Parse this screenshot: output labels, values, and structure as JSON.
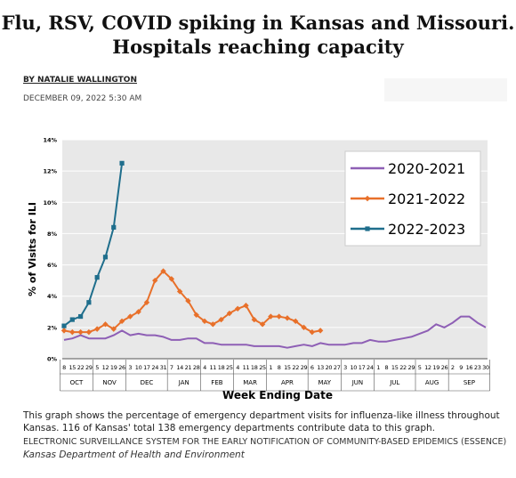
{
  "article": {
    "title_lines": [
      "Flu, RSV, COVID spiking in Kansas and Missouri.",
      "Hospitals reaching capacity"
    ],
    "byline": "BY NATALIE WALLINGTON",
    "date": "DECEMBER 09, 2022 5:30 AM",
    "caption": "This graph shows the percentage of emergency department visits for influenza-like illness throughout Kansas. 116 of Kansas' total 138 emergency departments contribute data to this graph.",
    "credit": "ELECTRONIC SURVEILLANCE SYSTEM FOR THE EARLY NOTIFICATION OF COMMUNITY-BASED EPIDEMICS (ESSENCE)",
    "credit_source": "Kansas Department of Health and Environment"
  },
  "chart_data": {
    "type": "line",
    "ylabel": "% of Visits for ILI",
    "xlabel": "Week Ending Date",
    "categories": [
      "8",
      "15",
      "22",
      "29",
      "5",
      "12",
      "19",
      "26",
      "3",
      "10",
      "17",
      "24",
      "31",
      "7",
      "14",
      "21",
      "28",
      "4",
      "11",
      "18",
      "25",
      "4",
      "11",
      "18",
      "25",
      "1",
      "8",
      "15",
      "22",
      "29",
      "6",
      "13",
      "20",
      "27",
      "3",
      "10",
      "17",
      "24",
      "1",
      "8",
      "15",
      "22",
      "29",
      "5",
      "12",
      "19",
      "26",
      "2",
      "9",
      "16",
      "23",
      "30"
    ],
    "months": [
      "OCT",
      "NOV",
      "DEC",
      "JAN",
      "FEB",
      "MAR",
      "APR",
      "MAY",
      "JUN",
      "JUL",
      "AUG",
      "SEP"
    ],
    "ylim": [
      0,
      14
    ],
    "yticks": [
      {
        "value": 0,
        "label": "0%"
      },
      {
        "value": 2,
        "label": "2%"
      },
      {
        "value": 4,
        "label": "4%"
      },
      {
        "value": 6,
        "label": "6%"
      },
      {
        "value": 8,
        "label": "8%"
      },
      {
        "value": 10,
        "label": "10%"
      },
      {
        "value": 12,
        "label": "12%"
      },
      {
        "value": 14,
        "label": "14%"
      }
    ],
    "grid": true,
    "legend": "upper right",
    "series": [
      {
        "name": "2020-2021",
        "color": "#8e5fb5",
        "marker": "none",
        "values": [
          1.2,
          1.3,
          1.5,
          1.3,
          1.3,
          1.3,
          1.5,
          1.8,
          1.5,
          1.6,
          1.5,
          1.5,
          1.4,
          1.2,
          1.2,
          1.3,
          1.3,
          1.0,
          1.0,
          0.9,
          0.9,
          0.9,
          0.9,
          0.8,
          0.8,
          0.8,
          0.8,
          0.7,
          0.8,
          0.9,
          0.8,
          1.0,
          0.9,
          0.9,
          0.9,
          1.0,
          1.0,
          1.2,
          1.1,
          1.1,
          1.2,
          1.3,
          1.4,
          1.6,
          1.8,
          2.2,
          2.0,
          2.3,
          2.7,
          2.7,
          2.3,
          2.0
        ]
      },
      {
        "name": "2021-2022",
        "color": "#e8702a",
        "marker": "diamond",
        "values": [
          1.8,
          1.7,
          1.7,
          1.7,
          1.9,
          2.2,
          1.9,
          2.4,
          2.7,
          3.0,
          3.6,
          5.0,
          5.6,
          5.1,
          4.3,
          3.7,
          2.8,
          2.4,
          2.2,
          2.5,
          2.9,
          3.2,
          3.4,
          2.5,
          2.2,
          2.7,
          2.7,
          2.6,
          2.4,
          2.0,
          1.7,
          1.8,
          null,
          null,
          null,
          null,
          null,
          null,
          null,
          null,
          null,
          null,
          null,
          null,
          null,
          null,
          null,
          null,
          null,
          null,
          null,
          null
        ]
      },
      {
        "name": "2022-2023",
        "color": "#1f6e8c",
        "marker": "square",
        "values": [
          2.1,
          2.5,
          2.7,
          3.6,
          5.2,
          6.5,
          8.4,
          12.5,
          null,
          null,
          null,
          null,
          null,
          null,
          null,
          null,
          null,
          null,
          null,
          null,
          null,
          null,
          null,
          null,
          null,
          null,
          null,
          null,
          null,
          null,
          null,
          null,
          null,
          null,
          null,
          null,
          null,
          null,
          null,
          null,
          null,
          null,
          null,
          null,
          null,
          null,
          null,
          null,
          null,
          null,
          null,
          null
        ]
      }
    ]
  }
}
